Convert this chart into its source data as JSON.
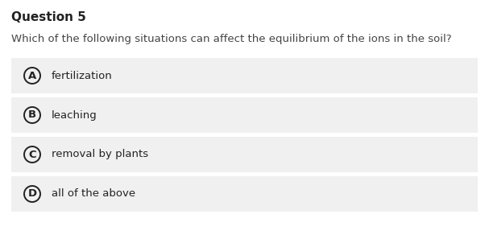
{
  "title": "Question 5",
  "question": "Which of the following situations can affect the equilibrium of the ions in the soil?",
  "options": [
    {
      "label": "A",
      "text": "fertilization"
    },
    {
      "label": "B",
      "text": "leaching"
    },
    {
      "label": "C",
      "text": "removal by plants"
    },
    {
      "label": "D",
      "text": "all of the above"
    }
  ],
  "bg_color": "#ffffff",
  "option_bg_color": "#f0f0f0",
  "title_fontsize": 11,
  "question_fontsize": 9.5,
  "option_fontsize": 9.5,
  "circle_color": "#222222",
  "text_color": "#222222",
  "question_color": "#444444",
  "fig_width": 6.07,
  "fig_height": 2.97,
  "dpi": 100
}
